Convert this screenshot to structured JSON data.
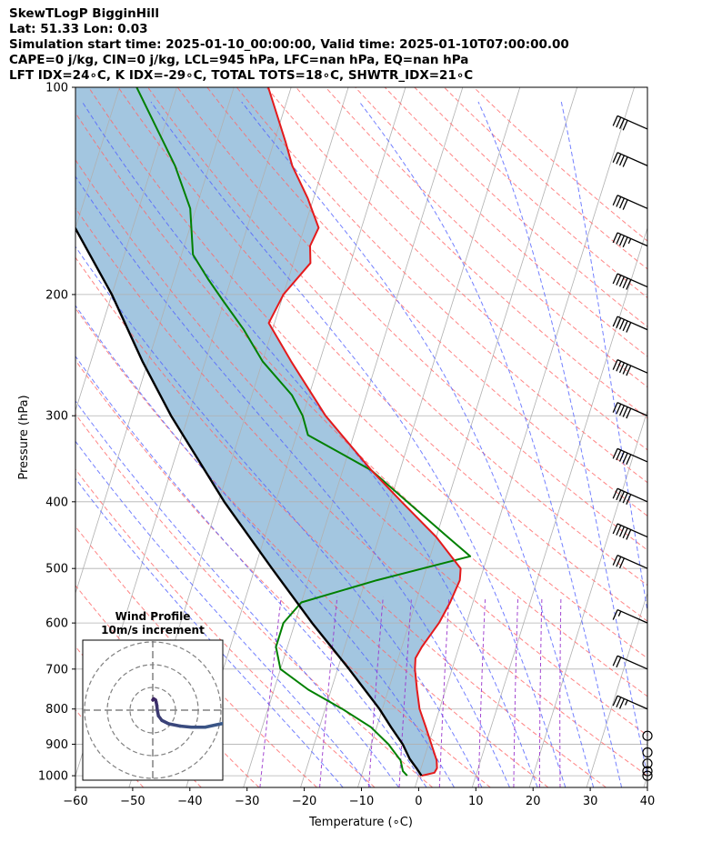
{
  "header": {
    "line1": "SkewTLogP BigginHill",
    "line2": "Lat: 51.33   Lon: 0.03",
    "line3": "Simulation start time: 2025-01-10_00:00:00, Valid time: 2025-01-10T07:00:00.00",
    "line4": "CAPE=0 j/kg, CIN=0 j/kg, LCL=945 hPa, LFC=nan hPa, EQ=nan hPa",
    "line5": "LFT IDX=24∘C, K IDX=-29∘C, TOTAL TOTS=18∘C, SHWTR_IDX=21∘C"
  },
  "chart_data": [
    {
      "type": "line",
      "subtype": "skew-T log-p",
      "xlabel": "Temperature (∘C)",
      "ylabel": "Pressure (hPa)",
      "xlim": [
        -60,
        40
      ],
      "ylim": [
        1040,
        100
      ],
      "y_scale": "log",
      "x_ticks": [
        "−60",
        "−50",
        "−40",
        "−30",
        "−20",
        "−10",
        "0",
        "10",
        "20",
        "30",
        "40"
      ],
      "y_ticks": [
        "100",
        "200",
        "300",
        "400",
        "500",
        "600",
        "700",
        "800",
        "900",
        "1000"
      ],
      "grid": true,
      "colors": {
        "temperature": "#e41a1c",
        "dewpoint": "#008000",
        "parcel": "#000000",
        "shade": "#a3c6e0",
        "dry_adiabat": "#ff6666",
        "moist_adiabat": "#5060ff",
        "mixing_ratio": "#9933cc",
        "isotherm": "#b0b0b0"
      },
      "series": [
        {
          "name": "",
          "kind": "temperature",
          "points": [
            [
              1000,
              0.5
            ],
            [
              990,
              2.6
            ],
            [
              975,
              2.8
            ],
            [
              950,
              2.3
            ],
            [
              900,
              0.5
            ],
            [
              850,
              -1.4
            ],
            [
              800,
              -3.5
            ],
            [
              750,
              -5.0
            ],
            [
              700,
              -6.5
            ],
            [
              675,
              -7.0
            ],
            [
              650,
              -6.5
            ],
            [
              620,
              -5.5
            ],
            [
              600,
              -4.8
            ],
            [
              560,
              -4.0
            ],
            [
              520,
              -3.5
            ],
            [
              500,
              -4.0
            ],
            [
              450,
              -10.0
            ],
            [
              400,
              -18.0
            ],
            [
              360,
              -25.0
            ],
            [
              300,
              -36.0
            ],
            [
              250,
              -45.0
            ],
            [
              220,
              -51.0
            ],
            [
              200,
              -50.0
            ],
            [
              180,
              -47.0
            ],
            [
              170,
              -48.0
            ],
            [
              160,
              -47.5
            ],
            [
              145,
              -51.0
            ],
            [
              130,
              -55.5
            ],
            [
              120,
              -58.0
            ],
            [
              100,
              -64.0
            ]
          ]
        },
        {
          "name": "",
          "kind": "dewpoint",
          "points": [
            [
              1000,
              -2.0
            ],
            [
              985,
              -3.0
            ],
            [
              950,
              -4.0
            ],
            [
              900,
              -7.0
            ],
            [
              850,
              -11.0
            ],
            [
              800,
              -17.0
            ],
            [
              750,
              -24.0
            ],
            [
              700,
              -30.0
            ],
            [
              650,
              -32.0
            ],
            [
              600,
              -32.0
            ],
            [
              560,
              -30.0
            ],
            [
              520,
              -18.0
            ],
            [
              480,
              -3.0
            ],
            [
              450,
              -8.0
            ],
            [
              400,
              -17.0
            ],
            [
              360,
              -25.0
            ],
            [
              320,
              -38.0
            ],
            [
              300,
              -40.0
            ],
            [
              280,
              -43.0
            ],
            [
              250,
              -50.0
            ],
            [
              225,
              -55.0
            ],
            [
              205,
              -60.0
            ],
            [
              190,
              -64.0
            ],
            [
              175,
              -68.0
            ],
            [
              150,
              -71.0
            ],
            [
              130,
              -76.0
            ],
            [
              100,
              -87.0
            ]
          ]
        },
        {
          "name": "",
          "kind": "parcel",
          "points": [
            [
              1000,
              0.5
            ],
            [
              975,
              -0.8
            ],
            [
              945,
              -2.5
            ],
            [
              900,
              -4.5
            ],
            [
              850,
              -7.5
            ],
            [
              800,
              -10.5
            ],
            [
              700,
              -18.0
            ],
            [
              600,
              -27.0
            ],
            [
              500,
              -37.0
            ],
            [
              400,
              -49.0
            ],
            [
              300,
              -63.0
            ],
            [
              250,
              -71.0
            ],
            [
              200,
              -80.0
            ],
            [
              150,
              -93.0
            ],
            [
              100,
              -111.0
            ]
          ]
        }
      ],
      "wind_barbs": [
        {
          "p": 1000,
          "speed_kt": 0
        },
        {
          "p": 985,
          "speed_kt": 0
        },
        {
          "p": 960,
          "speed_kt": 0
        },
        {
          "p": 925,
          "speed_kt": 0
        },
        {
          "p": 875,
          "speed_kt": 0
        },
        {
          "p": 800,
          "speed_kt": 35
        },
        {
          "p": 700,
          "speed_kt": 20
        },
        {
          "p": 600,
          "speed_kt": 15
        },
        {
          "p": 500,
          "speed_kt": 30
        },
        {
          "p": 450,
          "speed_kt": 50
        },
        {
          "p": 400,
          "speed_kt": 50
        },
        {
          "p": 350,
          "speed_kt": 50
        },
        {
          "p": 300,
          "speed_kt": 50
        },
        {
          "p": 260,
          "speed_kt": 50
        },
        {
          "p": 225,
          "speed_kt": 50
        },
        {
          "p": 195,
          "speed_kt": 50
        },
        {
          "p": 170,
          "speed_kt": 45
        },
        {
          "p": 150,
          "speed_kt": 40
        },
        {
          "p": 130,
          "speed_kt": 40
        },
        {
          "p": 115,
          "speed_kt": 40
        }
      ]
    },
    {
      "type": "line",
      "subtype": "hodograph",
      "title": "Wind Profile",
      "subtitle": "10m/s increment",
      "rings_ms": [
        10,
        20,
        30
      ],
      "colors": {
        "low": "#3a5a8a",
        "high": "#3b1f5e"
      },
      "u_ms": [
        0,
        0.4,
        1.2,
        1.5,
        1.8,
        2.0,
        2.5,
        4.0,
        7.0,
        12.0,
        17.0,
        23.0,
        30.0,
        40.0
      ],
      "v_ms": [
        4.5,
        5.0,
        4.5,
        3.5,
        2.0,
        0.0,
        -2.5,
        -4.5,
        -6.0,
        -7.0,
        -7.5,
        -7.5,
        -6.0,
        -5.0
      ]
    }
  ]
}
